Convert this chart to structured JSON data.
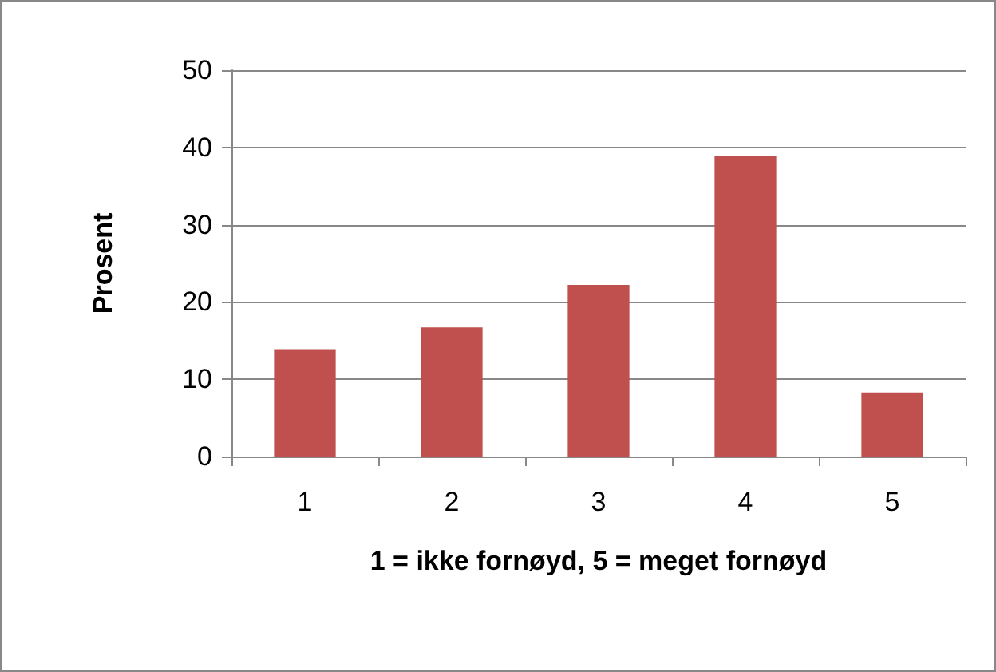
{
  "chart_data": {
    "type": "bar",
    "xlabel": "1 = ikke fornøyd, 5 = meget fornøyd",
    "ylabel": "Prosent",
    "categories": [
      "1",
      "2",
      "3",
      "4",
      "5"
    ],
    "values": [
      13.9,
      16.7,
      22.2,
      38.9,
      8.3
    ],
    "color": "#c0504d",
    "ylim": [
      0,
      50
    ],
    "yticks": [
      0,
      10,
      20,
      30,
      40,
      50
    ],
    "grid": "y"
  }
}
